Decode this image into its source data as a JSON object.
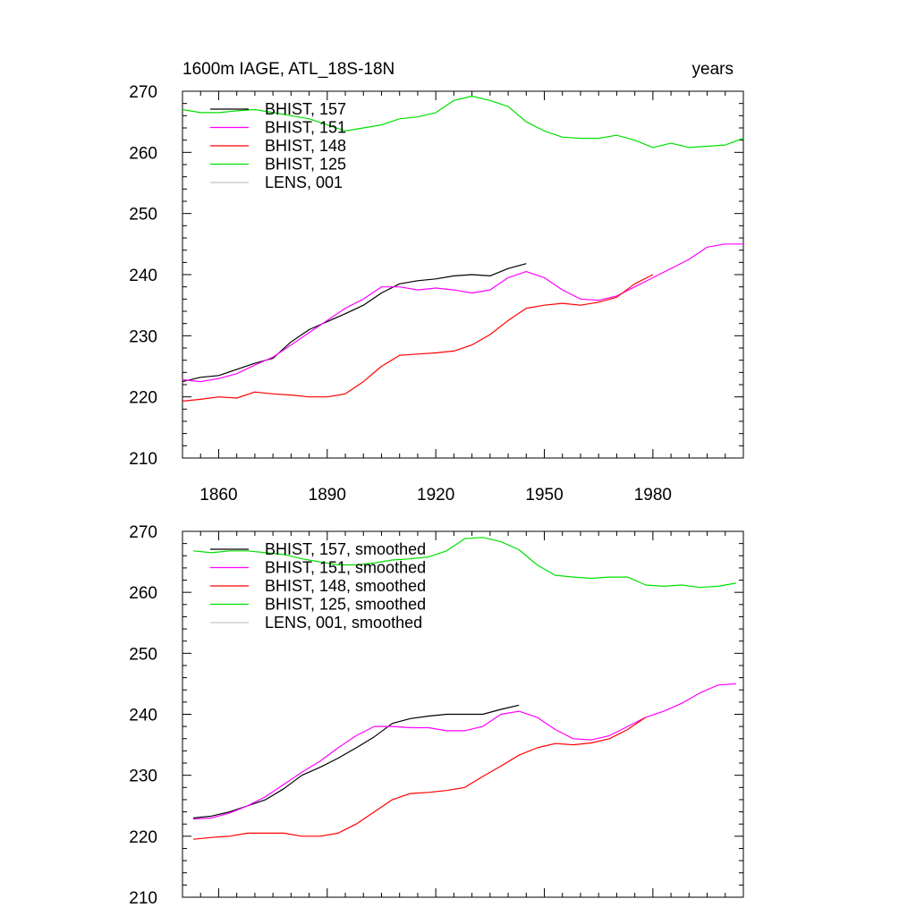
{
  "chart_data": [
    {
      "type": "line",
      "title_left": "1600m IAGE, ATL_18S-18N",
      "title_right": "years",
      "xlabel": "",
      "ylabel": "",
      "xlim": [
        1850,
        2005
      ],
      "ylim": [
        210,
        270
      ],
      "xticks": [
        1860,
        1890,
        1920,
        1950,
        1980
      ],
      "xtick_labels": [
        "1860",
        "1890",
        "1920",
        "1950",
        "1980"
      ],
      "yticks": [
        210,
        220,
        230,
        240,
        250,
        260,
        270
      ],
      "ytick_labels": [
        "210",
        "220",
        "230",
        "240",
        "250",
        "260",
        "270"
      ],
      "grid": false,
      "legend_position": "top-left",
      "series": [
        {
          "name": "BHIST, 157",
          "color": "#000000",
          "x": [
            1850,
            1855,
            1860,
            1865,
            1870,
            1875,
            1880,
            1885,
            1890,
            1895,
            1900,
            1905,
            1910,
            1915,
            1920,
            1925,
            1930,
            1935,
            1940,
            1945
          ],
          "y": [
            222.5,
            223.2,
            223.5,
            224.5,
            225.5,
            226.3,
            229.0,
            231.0,
            232.3,
            233.6,
            235.0,
            237.0,
            238.5,
            239.0,
            239.3,
            239.8,
            240.0,
            239.8,
            241.0,
            241.8
          ]
        },
        {
          "name": "BHIST, 151",
          "color": "#ff00ff",
          "x": [
            1850,
            1855,
            1860,
            1865,
            1870,
            1875,
            1880,
            1885,
            1890,
            1895,
            1900,
            1905,
            1910,
            1915,
            1920,
            1925,
            1930,
            1935,
            1940,
            1945,
            1950,
            1955,
            1960,
            1965,
            1970,
            1975,
            1980,
            1985,
            1990,
            1995,
            2000,
            2005
          ],
          "y": [
            222.8,
            222.5,
            223.0,
            223.8,
            225.2,
            226.5,
            228.5,
            230.5,
            232.5,
            234.5,
            236.0,
            238.0,
            238.0,
            237.5,
            237.8,
            237.5,
            237.0,
            237.5,
            239.5,
            240.5,
            239.5,
            237.5,
            236.0,
            235.8,
            236.5,
            238.0,
            239.5,
            241.0,
            242.5,
            244.5,
            245.0,
            245.0
          ]
        },
        {
          "name": "BHIST, 148",
          "color": "#ff0000",
          "x": [
            1850,
            1855,
            1860,
            1865,
            1870,
            1875,
            1880,
            1885,
            1890,
            1895,
            1900,
            1905,
            1910,
            1915,
            1920,
            1925,
            1930,
            1935,
            1940,
            1945,
            1950,
            1955,
            1960,
            1965,
            1970,
            1975,
            1980
          ],
          "y": [
            219.3,
            219.6,
            220.0,
            219.8,
            220.8,
            220.5,
            220.3,
            220.0,
            220.0,
            220.5,
            222.5,
            225.0,
            226.8,
            227.0,
            227.2,
            227.5,
            228.5,
            230.2,
            232.5,
            234.5,
            235.0,
            235.3,
            235.0,
            235.5,
            236.3,
            238.5,
            240.0
          ]
        },
        {
          "name": "BHIST, 125",
          "color": "#00e000",
          "x": [
            1850,
            1855,
            1860,
            1865,
            1870,
            1875,
            1880,
            1885,
            1890,
            1895,
            1900,
            1905,
            1910,
            1915,
            1920,
            1925,
            1930,
            1935,
            1940,
            1945,
            1950,
            1955,
            1960,
            1965,
            1970,
            1975,
            1980,
            1985,
            1990,
            1995,
            2000,
            2005
          ],
          "y": [
            267.0,
            266.5,
            266.5,
            266.8,
            267.0,
            266.5,
            266.0,
            265.5,
            264.5,
            263.5,
            264.0,
            264.5,
            265.5,
            265.8,
            266.5,
            268.5,
            269.2,
            268.5,
            267.5,
            265.0,
            263.5,
            262.5,
            262.3,
            262.3,
            262.8,
            262.0,
            260.8,
            261.5,
            260.8,
            261.0,
            261.2,
            262.3
          ]
        },
        {
          "name": "LENS, 001",
          "color": "#c8c8c8",
          "x": [],
          "y": []
        }
      ]
    },
    {
      "type": "line",
      "title_left": "",
      "title_right": "",
      "xlabel": "",
      "ylabel": "",
      "xlim": [
        1850,
        2005
      ],
      "ylim": [
        210,
        270
      ],
      "xticks": [
        1860,
        1890,
        1920,
        1950,
        1980
      ],
      "xtick_labels": [],
      "yticks": [
        210,
        220,
        230,
        240,
        250,
        260,
        270
      ],
      "ytick_labels": [
        "210",
        "220",
        "230",
        "240",
        "250",
        "260",
        "270"
      ],
      "grid": false,
      "legend_position": "top-left",
      "series": [
        {
          "name": "BHIST, 157, smoothed",
          "color": "#000000",
          "x": [
            1853,
            1858,
            1863,
            1868,
            1873,
            1878,
            1883,
            1888,
            1893,
            1898,
            1903,
            1908,
            1913,
            1918,
            1923,
            1928,
            1933,
            1938,
            1943
          ],
          "y": [
            223.0,
            223.3,
            224.0,
            225.0,
            226.0,
            227.8,
            230.0,
            231.3,
            232.8,
            234.5,
            236.3,
            238.5,
            239.3,
            239.7,
            240.0,
            240.0,
            240.0,
            240.8,
            241.5
          ]
        },
        {
          "name": "BHIST, 151, smoothed",
          "color": "#ff00ff",
          "x": [
            1853,
            1858,
            1863,
            1868,
            1873,
            1878,
            1883,
            1888,
            1893,
            1898,
            1903,
            1908,
            1913,
            1918,
            1923,
            1928,
            1933,
            1938,
            1943,
            1948,
            1953,
            1958,
            1963,
            1968,
            1973,
            1978,
            1983,
            1988,
            1993,
            1998,
            2003
          ],
          "y": [
            222.8,
            223.0,
            223.8,
            225.0,
            226.5,
            228.5,
            230.5,
            232.3,
            234.5,
            236.5,
            238.0,
            238.0,
            237.8,
            237.8,
            237.3,
            237.3,
            238.0,
            240.0,
            240.5,
            239.5,
            237.5,
            236.0,
            235.8,
            236.5,
            238.0,
            239.5,
            240.5,
            241.8,
            243.5,
            244.8,
            245.0
          ]
        },
        {
          "name": "BHIST, 148, smoothed",
          "color": "#ff0000",
          "x": [
            1853,
            1858,
            1863,
            1868,
            1873,
            1878,
            1883,
            1888,
            1893,
            1898,
            1903,
            1908,
            1913,
            1918,
            1923,
            1928,
            1933,
            1938,
            1943,
            1948,
            1953,
            1958,
            1963,
            1968,
            1973,
            1978
          ],
          "y": [
            219.5,
            219.8,
            220.0,
            220.5,
            220.5,
            220.5,
            220.0,
            220.0,
            220.5,
            222.0,
            224.0,
            226.0,
            227.0,
            227.2,
            227.5,
            228.0,
            229.8,
            231.5,
            233.3,
            234.5,
            235.2,
            235.0,
            235.3,
            236.0,
            237.5,
            239.5
          ]
        },
        {
          "name": "BHIST, 125, smoothed",
          "color": "#00e000",
          "x": [
            1853,
            1858,
            1863,
            1868,
            1873,
            1878,
            1883,
            1888,
            1893,
            1898,
            1903,
            1908,
            1913,
            1918,
            1923,
            1928,
            1933,
            1938,
            1943,
            1948,
            1953,
            1958,
            1963,
            1968,
            1973,
            1978,
            1983,
            1988,
            1993,
            1998,
            2003
          ],
          "y": [
            266.8,
            266.5,
            266.8,
            266.8,
            266.5,
            266.2,
            265.5,
            265.0,
            264.5,
            264.5,
            264.8,
            265.3,
            265.5,
            265.8,
            266.8,
            268.8,
            269.0,
            268.3,
            267.0,
            264.5,
            262.8,
            262.5,
            262.3,
            262.5,
            262.5,
            261.2,
            261.0,
            261.2,
            260.8,
            261.0,
            261.5
          ]
        },
        {
          "name": "LENS, 001, smoothed",
          "color": "#c8c8c8",
          "x": [],
          "y": []
        }
      ]
    }
  ]
}
